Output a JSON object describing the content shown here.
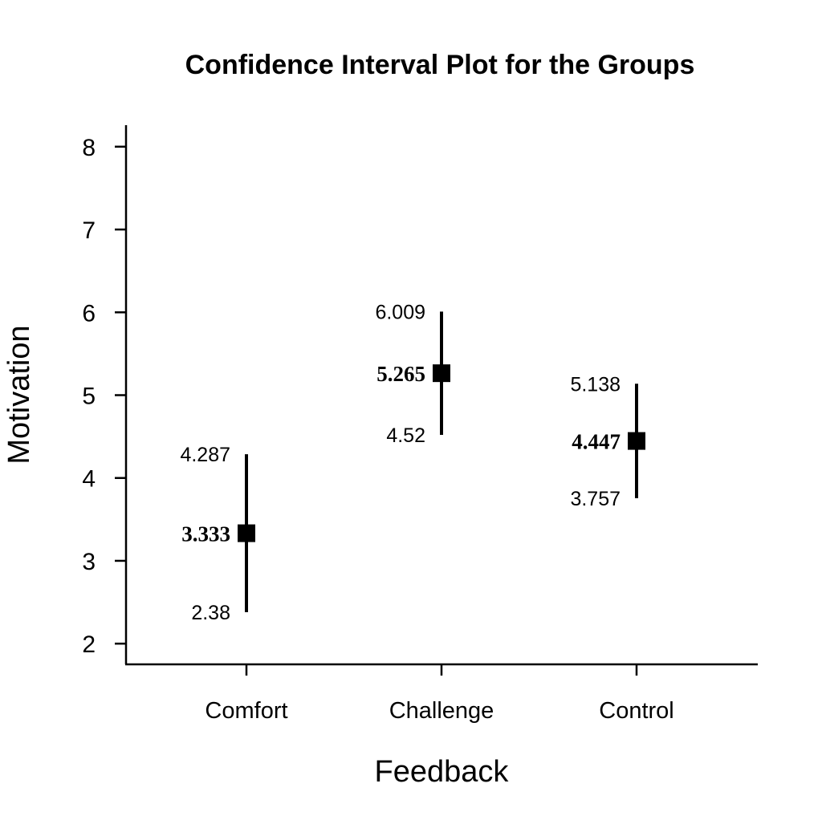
{
  "chart_data": {
    "type": "scatter",
    "title": "Confidence Interval Plot for the Groups",
    "xlabel": "Feedback",
    "ylabel": "Motivation",
    "categories": [
      "Comfort",
      "Challenge",
      "Control"
    ],
    "ylim": [
      1.75,
      8.25
    ],
    "yticks": [
      "2",
      "3",
      "4",
      "5",
      "6",
      "7",
      "8"
    ],
    "grid": false,
    "series": [
      {
        "means": [
          3.333,
          5.265,
          4.447
        ],
        "lower": [
          2.38,
          4.52,
          3.757
        ],
        "upper": [
          4.287,
          6.009,
          5.138
        ],
        "mean_labels": [
          "3.333",
          "5.265",
          "4.447"
        ],
        "lower_labels": [
          "2.38",
          "4.52",
          "3.757"
        ],
        "upper_labels": [
          "4.287",
          "6.009",
          "5.138"
        ]
      }
    ],
    "colors": {
      "marker": "#000000",
      "line": "#000000"
    }
  }
}
